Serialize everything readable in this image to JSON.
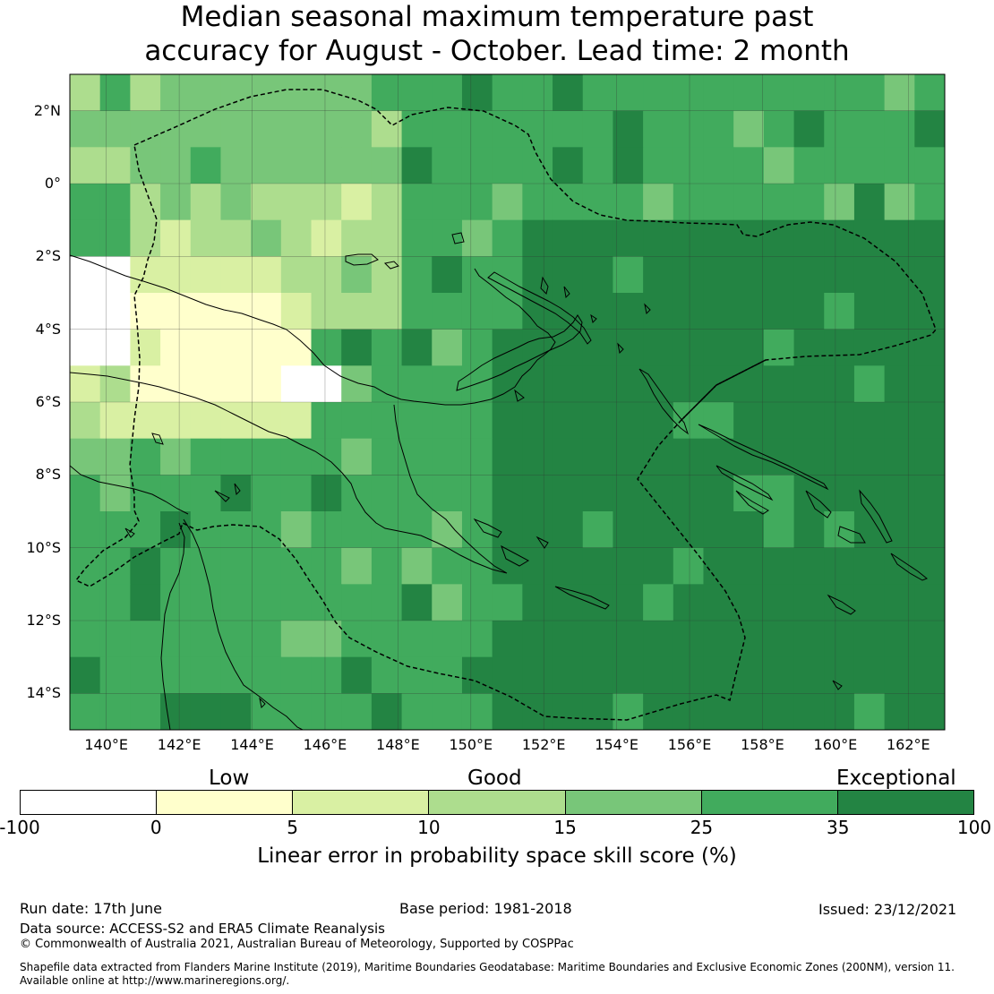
{
  "title_line1": "Median seasonal maximum temperature past",
  "title_line2": "accuracy for August - October. Lead time: 2 month",
  "map": {
    "lon_range": [
      139,
      163
    ],
    "lat_range": [
      -15,
      3
    ],
    "lon_ticks": [
      "140°E",
      "142°E",
      "144°E",
      "146°E",
      "148°E",
      "150°E",
      "152°E",
      "154°E",
      "156°E",
      "158°E",
      "160°E",
      "162°E"
    ],
    "lat_ticks": [
      "2°N",
      "0°",
      "2°S",
      "4°S",
      "6°S",
      "8°S",
      "10°S",
      "12°S",
      "14°S"
    ],
    "grid_lines": true
  },
  "colorbar": {
    "categories": [
      "Low",
      "Good",
      "Exceptional"
    ],
    "tick_labels": [
      "-100",
      "0",
      "5",
      "10",
      "15",
      "25",
      "35",
      "100"
    ],
    "colors": [
      "#ffffff",
      "#ffffcc",
      "#d9f0a3",
      "#addd8e",
      "#78c679",
      "#41ab5d",
      "#238443"
    ],
    "label": "Linear error in probability space skill score (%)"
  },
  "footer": {
    "run_date": "Run date: 17th June",
    "base_period": "Base period: 1981-2018",
    "issued": "Issued: 23/12/2021",
    "data_source": "Data source: ACCESS-S2 and ERA5 Climate Reanalysis",
    "copyright": "© Commonwealth of Australia 2021, Australian Bureau of Meteorology, Supported by COSPPac",
    "shapefile_line1": "Shapefile data extracted from Flanders Marine Institute (2019), Maritime Boundaries Geodatabase: Maritime Boundaries and Exclusive Economic Zones (200NM), version 11.",
    "shapefile_line2": "Available online at http://www.marineregions.org/."
  }
}
